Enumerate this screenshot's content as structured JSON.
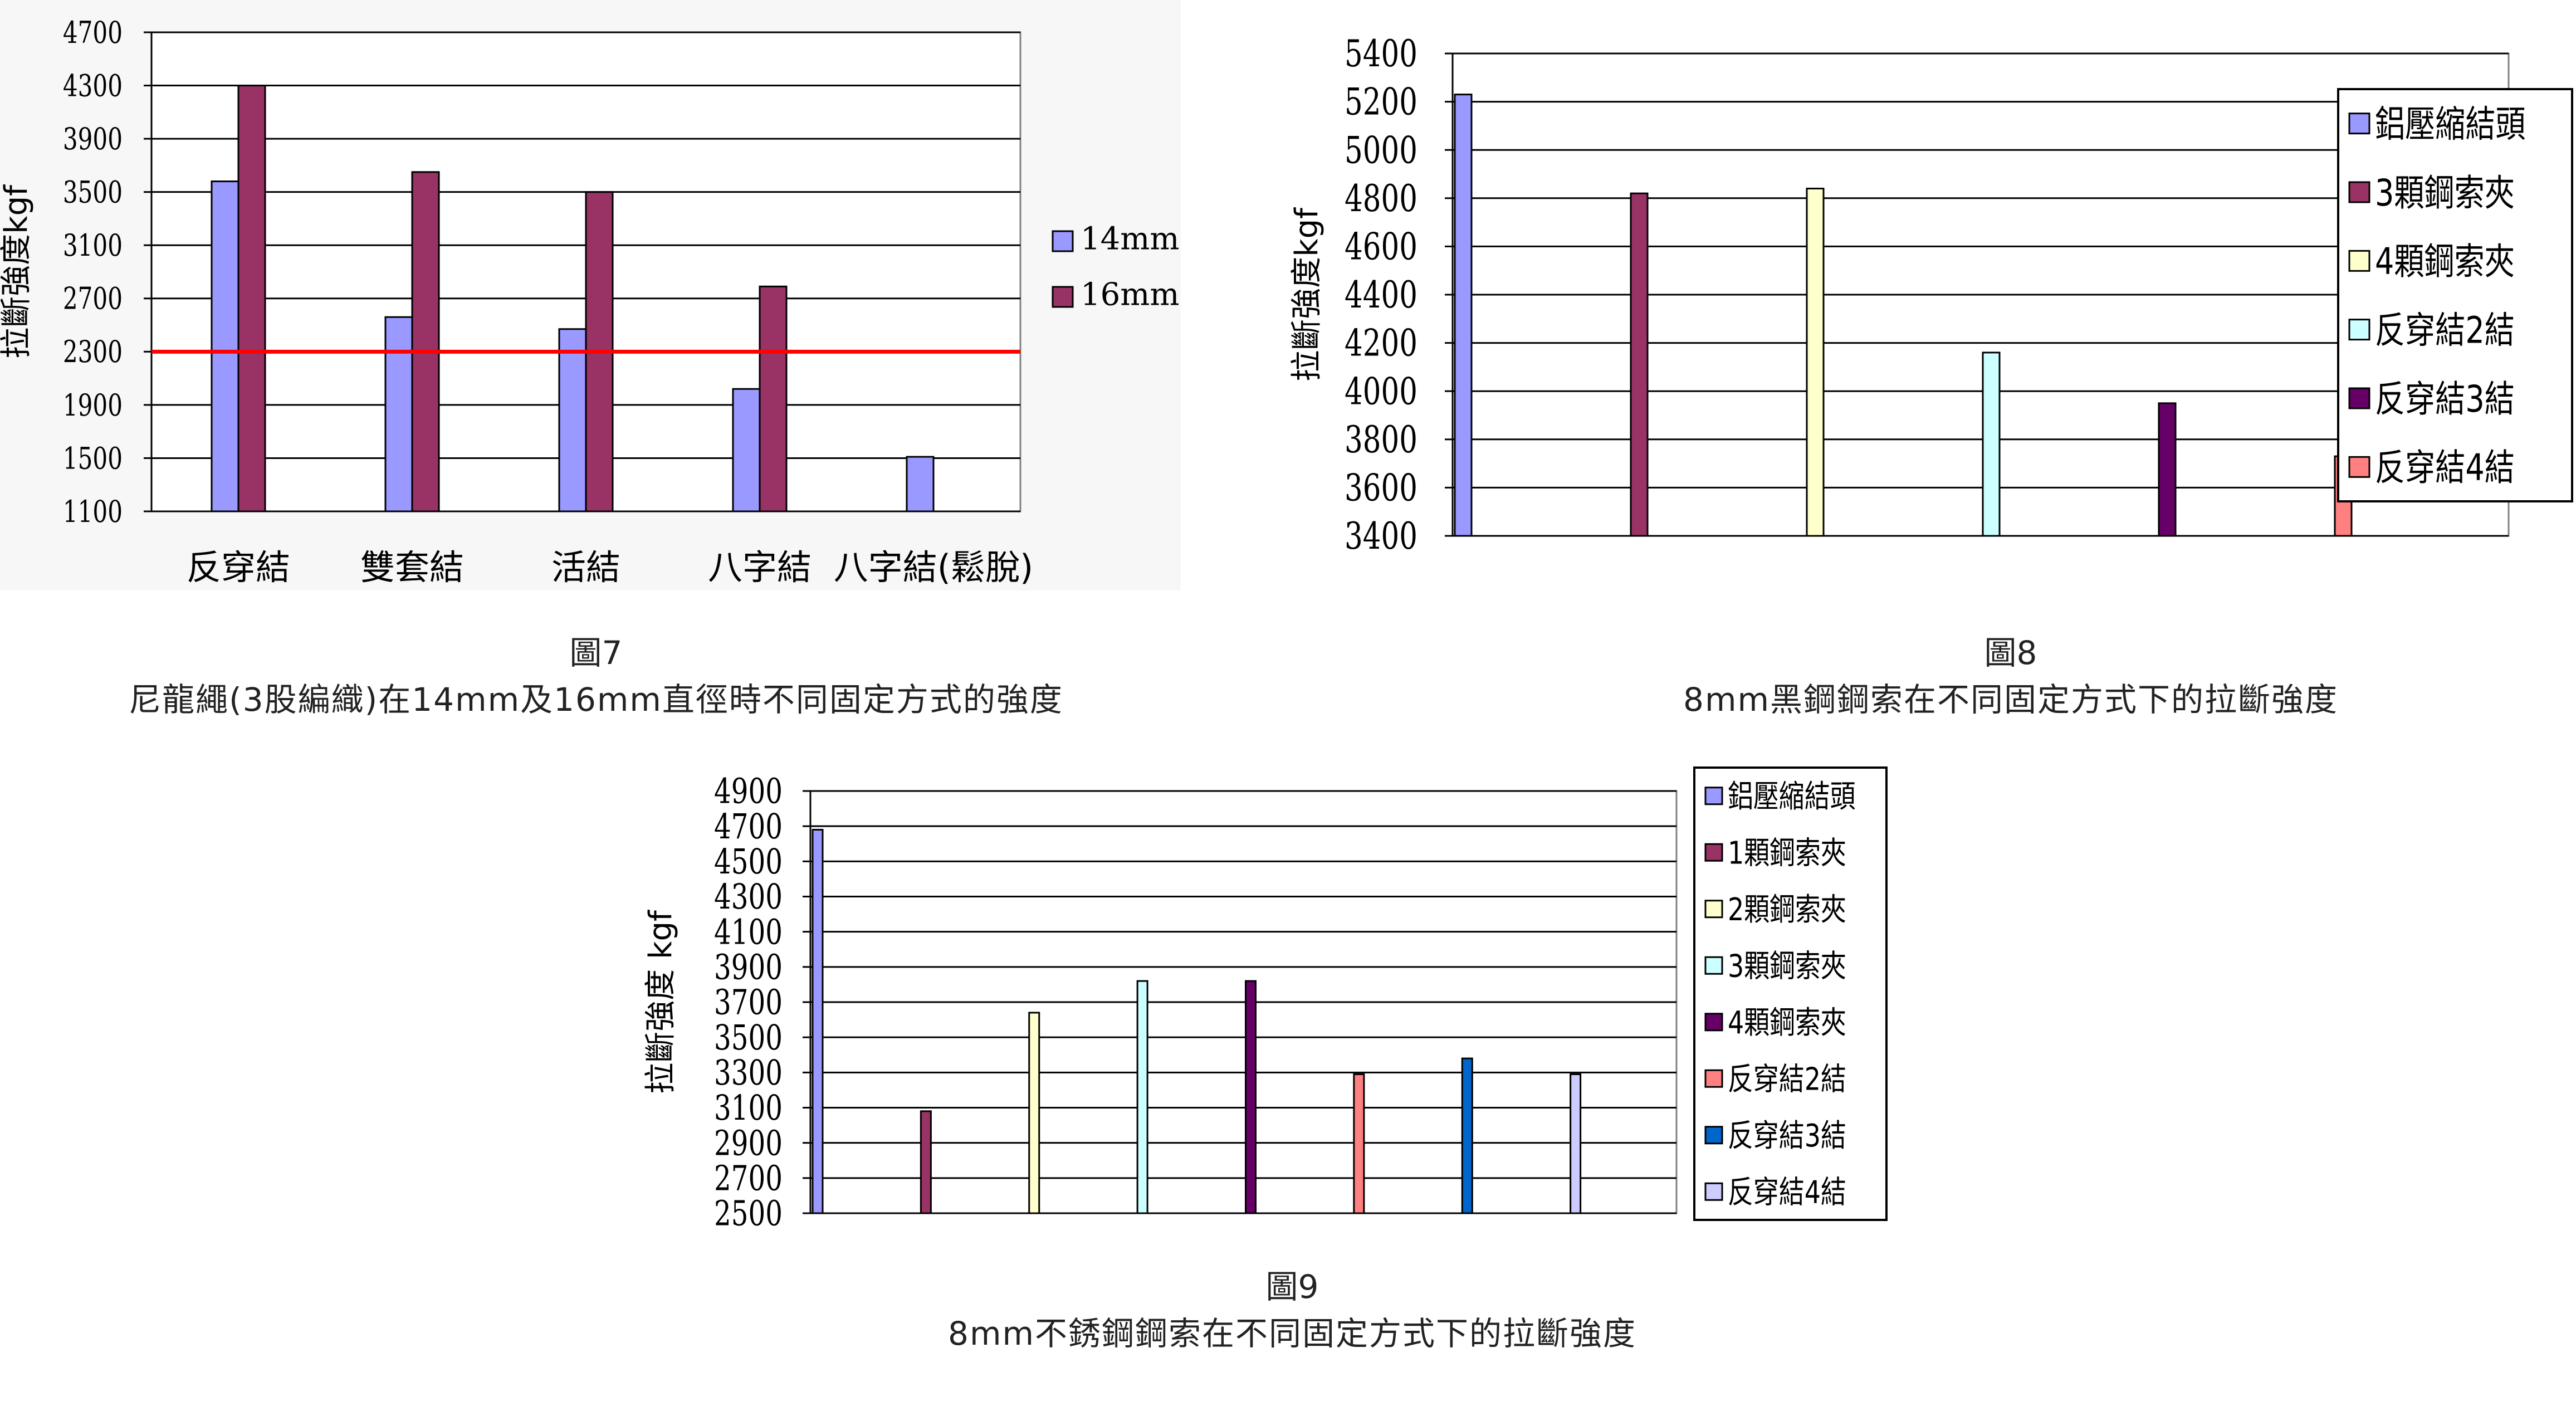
{
  "chart_data": [
    {
      "id": "fig7",
      "type": "bar",
      "figure_number": "圖7",
      "title": "尼龍繩(3股編織)在14mm及16mm直徑時不同固定方式的強度",
      "ylabel": "拉斷強度kgf",
      "xlabel": "",
      "ylim": [
        1100,
        4700
      ],
      "yticks": [
        1100,
        1500,
        1900,
        2300,
        2700,
        3100,
        3500,
        3900,
        4300,
        4700
      ],
      "grid": true,
      "legend_position": "right",
      "categories": [
        "反穿結",
        "雙套結",
        "活結",
        "八字結",
        "八字結(鬆脫)"
      ],
      "series": [
        {
          "name": "14mm",
          "color": "#9999ff",
          "values": [
            3580,
            2560,
            2470,
            2020,
            1510
          ]
        },
        {
          "name": "16mm",
          "color": "#993366",
          "values": [
            4300,
            3650,
            3500,
            2790,
            null
          ]
        }
      ],
      "reference_line": {
        "value": 2300,
        "color": "#ff0000"
      }
    },
    {
      "id": "fig8",
      "type": "bar",
      "figure_number": "圖8",
      "title": "8mm黑鋼鋼索在不同固定方式下的拉斷強度",
      "ylabel": "拉斷強度kgf",
      "xlabel": "",
      "ylim": [
        3400,
        5400
      ],
      "yticks": [
        3400,
        3600,
        3800,
        4000,
        4200,
        4400,
        4600,
        4800,
        5000,
        5200,
        5400
      ],
      "grid": true,
      "legend_position": "right",
      "series": [
        {
          "name": "鋁壓縮結頭",
          "color": "#9999ff",
          "value": 5230
        },
        {
          "name": "3顆鋼索夾",
          "color": "#993366",
          "value": 4820
        },
        {
          "name": "4顆鋼索夾",
          "color": "#ffffcc",
          "value": 4840
        },
        {
          "name": "反穿結2結",
          "color": "#ccffff",
          "value": 4160
        },
        {
          "name": "反穿結3結",
          "color": "#660066",
          "value": 3950
        },
        {
          "name": "反穿結4結",
          "color": "#ff8080",
          "value": 3730
        }
      ]
    },
    {
      "id": "fig9",
      "type": "bar",
      "figure_number": "圖9",
      "title": "8mm不銹鋼鋼索在不同固定方式下的拉斷強度",
      "ylabel": "拉斷強度 kgf",
      "xlabel": "",
      "ylim": [
        2500,
        4900
      ],
      "yticks": [
        2500,
        2700,
        2900,
        3100,
        3300,
        3500,
        3700,
        3900,
        4100,
        4300,
        4500,
        4700,
        4900
      ],
      "grid": true,
      "legend_position": "right",
      "series": [
        {
          "name": "鋁壓縮結頭",
          "color": "#9999ff",
          "value": 4680
        },
        {
          "name": "1顆鋼索夾",
          "color": "#993366",
          "value": 3080
        },
        {
          "name": "2顆鋼索夾",
          "color": "#ffffcc",
          "value": 3640
        },
        {
          "name": "3顆鋼索夾",
          "color": "#ccffff",
          "value": 3820
        },
        {
          "name": "4顆鋼索夾",
          "color": "#660066",
          "value": 3820
        },
        {
          "name": "反穿結2結",
          "color": "#ff8080",
          "value": 3290
        },
        {
          "name": "反穿結3結",
          "color": "#0066cc",
          "value": 3380
        },
        {
          "name": "反穿結4結",
          "color": "#ccccff",
          "value": 3290
        }
      ]
    }
  ]
}
